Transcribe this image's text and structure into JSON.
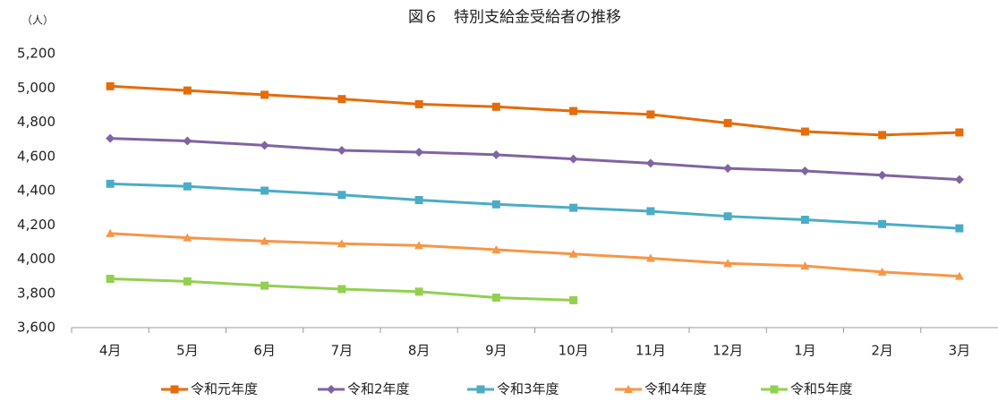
{
  "chart_data": {
    "type": "line",
    "title": "図６　特別支給金受給者の推移",
    "unit_label": "（人）",
    "categories": [
      "4月",
      "5月",
      "6月",
      "7月",
      "8月",
      "9月",
      "10月",
      "11月",
      "12月",
      "1月",
      "2月",
      "3月"
    ],
    "ylim": [
      3600,
      5200
    ],
    "yticks": [
      {
        "value": 3600,
        "label": "3,600"
      },
      {
        "value": 3800,
        "label": "3,800"
      },
      {
        "value": 4000,
        "label": "4,000"
      },
      {
        "value": 4200,
        "label": "4,200"
      },
      {
        "value": 4400,
        "label": "4,400"
      },
      {
        "value": 4600,
        "label": "4,600"
      },
      {
        "value": 4800,
        "label": "4,800"
      },
      {
        "value": 5000,
        "label": "5,000"
      },
      {
        "value": 5200,
        "label": "5,200"
      }
    ],
    "legend": "bottom",
    "series": [
      {
        "name": "令和元年度",
        "color": "#e46c0a",
        "marker": "square",
        "values": [
          5010,
          4985,
          4960,
          4935,
          4905,
          4890,
          4865,
          4845,
          4795,
          4745,
          4725,
          4740
        ]
      },
      {
        "name": "令和2年度",
        "color": "#8064a2",
        "marker": "diamond",
        "values": [
          4705,
          4690,
          4665,
          4635,
          4625,
          4610,
          4585,
          4560,
          4530,
          4515,
          4490,
          4465
        ]
      },
      {
        "name": "令和3年度",
        "color": "#4bacc6",
        "marker": "square",
        "values": [
          4440,
          4425,
          4400,
          4375,
          4345,
          4320,
          4300,
          4280,
          4250,
          4230,
          4205,
          4180
        ]
      },
      {
        "name": "令和4年度",
        "color": "#f79646",
        "marker": "triangle",
        "values": [
          4150,
          4125,
          4105,
          4090,
          4080,
          4055,
          4030,
          4005,
          3975,
          3960,
          3925,
          3900
        ]
      },
      {
        "name": "令和5年度",
        "color": "#92d050",
        "marker": "square",
        "values": [
          3885,
          3870,
          3845,
          3825,
          3810,
          3775,
          3760,
          null,
          null,
          null,
          null,
          null
        ]
      }
    ]
  }
}
